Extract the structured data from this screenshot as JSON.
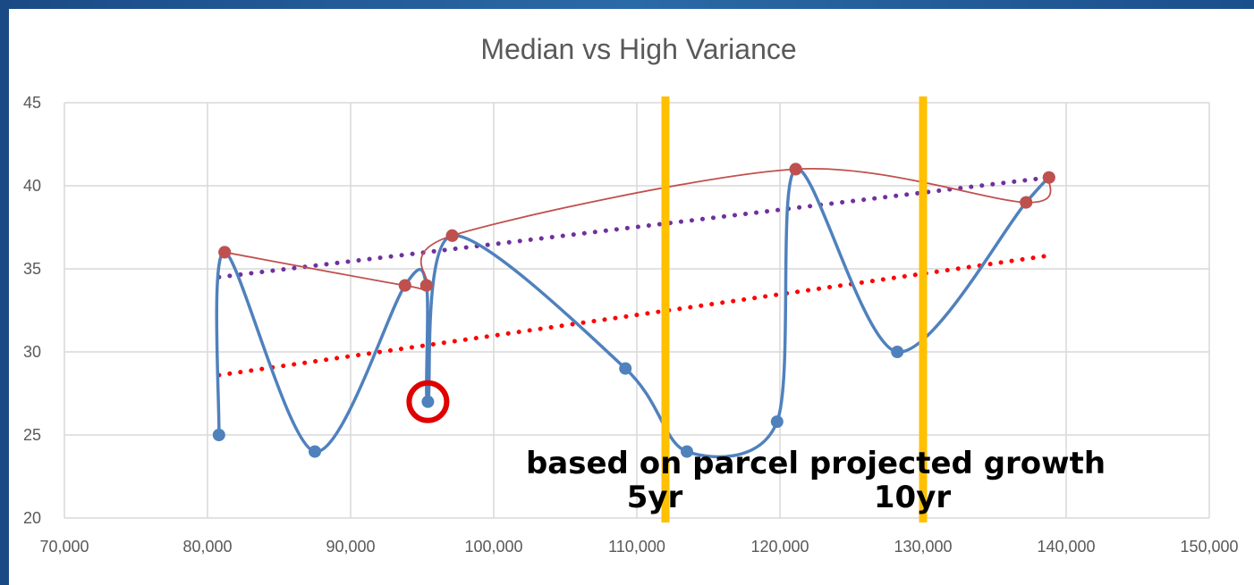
{
  "chart_data": {
    "type": "scatter",
    "title": "Median vs High Variance",
    "xlim": [
      70000,
      150000
    ],
    "ylim": [
      20,
      45
    ],
    "xticks": [
      "70,000",
      "80,000",
      "90,000",
      "100,000",
      "110,000",
      "120,000",
      "130,000",
      "140,000",
      "150,000"
    ],
    "yticks": [
      "20",
      "25",
      "30",
      "35",
      "40",
      "45"
    ],
    "grid": true,
    "legend": "none",
    "series": [
      {
        "color": "#4f81bd",
        "smooth": true,
        "points": [
          [
            80800,
            25
          ],
          [
            81200,
            36
          ],
          [
            87500,
            24
          ],
          [
            93800,
            34
          ],
          [
            95300,
            34
          ],
          [
            95400,
            27
          ],
          [
            97100,
            37
          ],
          [
            109200,
            29
          ],
          [
            113500,
            24
          ],
          [
            119800,
            25.8
          ],
          [
            121100,
            41
          ],
          [
            128200,
            30
          ],
          [
            137200,
            39
          ],
          [
            138800,
            40.5
          ]
        ]
      },
      {
        "color": "#c0504d",
        "smooth": true,
        "points": [
          [
            81200,
            36
          ],
          [
            93800,
            34
          ],
          [
            95300,
            34
          ],
          [
            97100,
            37
          ],
          [
            121100,
            41
          ],
          [
            137200,
            39
          ],
          [
            138800,
            40.5
          ]
        ]
      }
    ],
    "trendlines": [
      {
        "color": "#7030a0",
        "style": "dotted",
        "from": [
          80800,
          34.5
        ],
        "to": [
          138800,
          40.5
        ]
      },
      {
        "color": "#ff0000",
        "style": "dotted",
        "from": [
          80800,
          28.6
        ],
        "to": [
          138800,
          35.8
        ]
      }
    ],
    "highlight": {
      "x": 95400,
      "y": 27,
      "color": "#e00000"
    },
    "vertical_markers": [
      {
        "x": 112000,
        "label": "5yr",
        "color": "#ffc000"
      },
      {
        "x": 130000,
        "label": "10yr",
        "color": "#ffc000"
      }
    ],
    "annotation": "based on parcel projected growth"
  }
}
